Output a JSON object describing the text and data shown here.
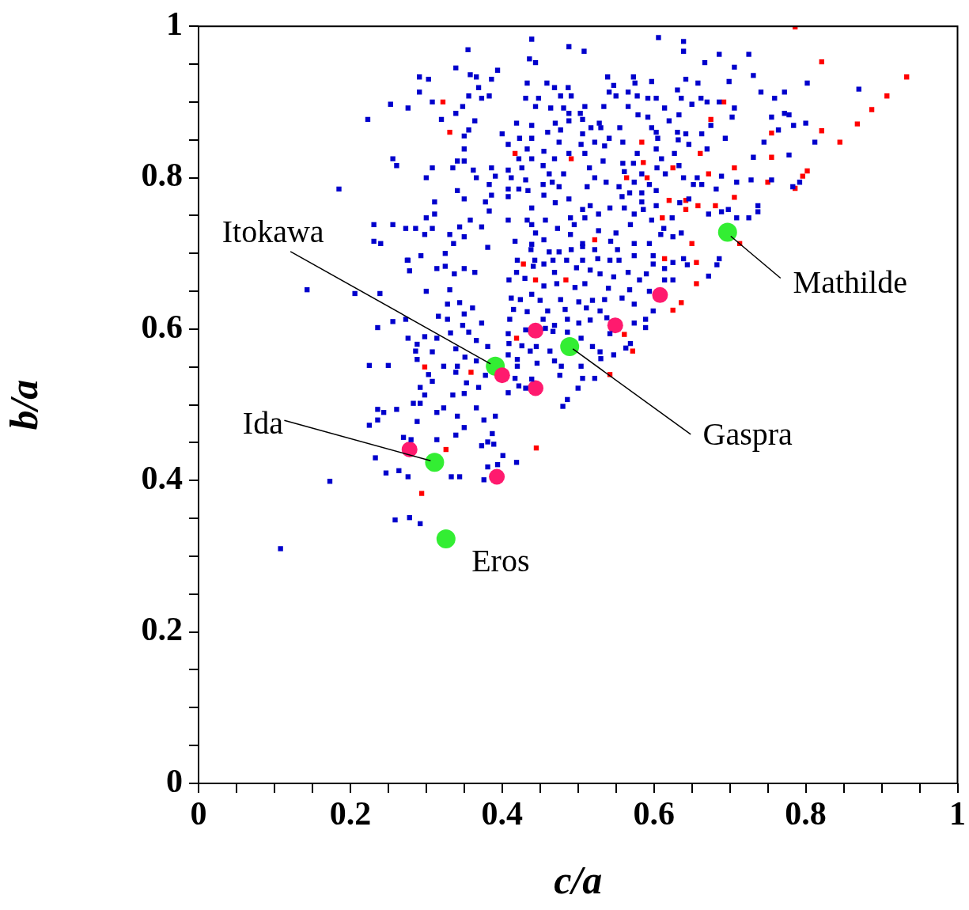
{
  "chart_data": {
    "type": "scatter",
    "xlabel": "c/a",
    "ylabel": "b/a",
    "xlim": [
      0,
      1
    ],
    "ylim": [
      0,
      1
    ],
    "xticks": [
      0,
      {
        "value": 0.05,
        "label": null
      },
      {
        "value": 0.1,
        "label": null
      },
      {
        "value": 0.15,
        "label": null
      },
      0.2,
      {
        "value": 0.25,
        "label": null
      },
      {
        "value": 0.3,
        "label": null
      },
      {
        "value": 0.35,
        "label": null
      },
      0.4,
      {
        "value": 0.45,
        "label": null
      },
      {
        "value": 0.5,
        "label": null
      },
      {
        "value": 0.55,
        "label": null
      },
      0.6,
      {
        "value": 0.65,
        "label": null
      },
      {
        "value": 0.7,
        "label": null
      },
      {
        "value": 0.75,
        "label": null
      },
      0.8,
      {
        "value": 0.85,
        "label": null
      },
      {
        "value": 0.9,
        "label": null
      },
      {
        "value": 0.95,
        "label": null
      },
      1
    ],
    "yticks": [
      0,
      {
        "value": 0.05,
        "label": null
      },
      {
        "value": 0.1,
        "label": null
      },
      {
        "value": 0.15,
        "label": null
      },
      0.2,
      {
        "value": 0.25,
        "label": null
      },
      {
        "value": 0.3,
        "label": null
      },
      {
        "value": 0.35,
        "label": null
      },
      0.4,
      {
        "value": 0.45,
        "label": null
      },
      {
        "value": 0.5,
        "label": null
      },
      {
        "value": 0.55,
        "label": null
      },
      0.6,
      {
        "value": 0.65,
        "label": null
      },
      {
        "value": 0.7,
        "label": null
      },
      {
        "value": 0.75,
        "label": null
      },
      0.8,
      {
        "value": 0.85,
        "label": null
      },
      {
        "value": 0.9,
        "label": null
      },
      {
        "value": 0.95,
        "label": null
      },
      1
    ],
    "grid": false,
    "legend": false,
    "series": [
      {
        "color": "#0000cc",
        "marker": "square",
        "x": [
          0.355,
          0.339,
          0.291,
          0.303,
          0.291,
          0.358,
          0.366,
          0.369,
          0.356,
          0.373,
          0.383,
          0.386,
          0.394,
          0.253,
          0.276,
          0.308,
          0.339,
          0.348,
          0.32,
          0.364,
          0.223,
          0.356,
          0.35,
          0.4,
          0.35,
          0.256,
          0.261,
          0.308,
          0.341,
          0.35,
          0.335,
          0.362,
          0.386,
          0.3,
          0.366,
          0.391,
          0.383,
          0.185,
          0.341,
          0.311,
          0.35,
          0.386,
          0.378,
          0.311,
          0.3,
          0.358,
          0.383,
          0.231,
          0.256,
          0.273,
          0.286,
          0.308,
          0.344,
          0.373,
          0.298,
          0.331,
          0.35,
          0.231,
          0.24,
          0.336,
          0.381,
          0.293,
          0.325,
          0.275,
          0.439,
          0.488,
          0.508,
          0.606,
          0.639,
          0.639,
          0.686,
          0.436,
          0.444,
          0.667,
          0.706,
          0.539,
          0.573,
          0.597,
          0.642,
          0.699,
          0.658,
          0.433,
          0.459,
          0.469,
          0.487,
          0.547,
          0.575,
          0.631,
          0.541,
          0.566,
          0.431,
          0.448,
          0.477,
          0.491,
          0.55,
          0.578,
          0.592,
          0.603,
          0.636,
          0.662,
          0.67,
          0.686,
          0.65,
          0.444,
          0.464,
          0.481,
          0.509,
          0.534,
          0.566,
          0.614,
          0.706,
          0.488,
          0.503,
          0.579,
          0.592,
          0.633,
          0.703,
          0.419,
          0.439,
          0.47,
          0.488,
          0.506,
          0.528,
          0.555,
          0.597,
          0.62,
          0.675,
          0.46,
          0.477,
          0.506,
          0.517,
          0.53,
          0.603,
          0.631,
          0.642,
          0.663,
          0.694,
          0.408,
          0.423,
          0.439,
          0.475,
          0.504,
          0.522,
          0.541,
          0.559,
          0.605,
          0.632,
          0.646,
          0.67,
          0.433,
          0.455,
          0.488,
          0.509,
          0.535,
          0.578,
          0.603,
          0.627,
          0.422,
          0.439,
          0.469,
          0.533,
          0.559,
          0.573,
          0.61,
          0.633,
          0.454,
          0.426,
          0.515,
          0.604,
          0.408,
          0.462,
          0.481,
          0.561,
          0.584,
          0.615,
          0.412,
          0.431,
          0.466,
          0.522,
          0.537,
          0.574,
          0.639,
          0.657,
          0.689,
          0.454,
          0.475,
          0.512,
          0.554,
          0.594,
          0.652,
          0.663,
          0.709,
          0.408,
          0.422,
          0.434,
          0.682,
          0.455,
          0.558,
          0.568,
          0.584,
          0.603,
          0.408,
          0.488,
          0.47,
          0.516,
          0.542,
          0.561,
          0.584,
          0.634,
          0.646,
          0.439,
          0.506,
          0.603,
          0.672,
          0.689,
          0.698,
          0.408,
          0.433,
          0.457,
          0.49,
          0.509,
          0.527,
          0.574,
          0.586,
          0.624,
          0.709,
          0.439,
          0.473,
          0.495,
          0.527,
          0.55,
          0.569,
          0.597,
          0.613,
          0.636,
          0.417,
          0.444,
          0.455,
          0.49,
          0.506,
          0.543,
          0.574,
          0.594,
          0.609,
          0.625,
          0.438,
          0.462,
          0.475,
          0.491,
          0.522,
          0.552,
          0.574,
          0.599,
          0.639,
          0.686,
          0.725,
          0.731,
          0.741,
          0.802,
          0.87,
          0.759,
          0.772,
          0.755,
          0.772,
          0.778,
          0.784,
          0.8,
          0.764,
          0.745,
          0.812,
          0.731,
          0.778,
          0.728,
          0.755,
          0.783,
          0.792,
          0.737,
          0.737,
          0.725,
          0.439,
          0.506,
          0.683,
          0.672,
          0.644,
          0.625,
          0.614,
          0.614,
          0.625,
          0.599,
          0.554,
          0.542,
          0.526,
          0.506,
          0.485,
          0.467,
          0.443,
          0.42,
          0.441,
          0.455,
          0.419,
          0.469,
          0.498,
          0.516,
          0.529,
          0.547,
          0.566,
          0.581,
          0.59,
          0.409,
          0.43,
          0.455,
          0.472,
          0.496,
          0.509,
          0.54,
          0.568,
          0.594,
          0.412,
          0.424,
          0.439,
          0.45,
          0.477,
          0.501,
          0.519,
          0.535,
          0.558,
          0.574,
          0.599,
          0.415,
          0.433,
          0.46,
          0.483,
          0.511,
          0.529,
          0.41,
          0.454,
          0.469,
          0.486,
          0.501,
          0.516,
          0.538,
          0.574,
          0.589,
          0.589,
          0.408,
          0.431,
          0.457,
          0.467,
          0.486,
          0.504,
          0.542,
          0.569,
          0.409,
          0.426,
          0.437,
          0.445,
          0.463,
          0.519,
          0.529,
          0.563,
          0.547,
          0.408,
          0.42,
          0.469,
          0.504,
          0.53,
          0.42,
          0.446,
          0.478,
          0.476,
          0.417,
          0.506,
          0.522,
          0.422,
          0.431,
          0.5,
          0.48,
          0.486,
          0.408,
          0.439,
          0.143,
          0.206,
          0.239,
          0.276,
          0.278,
          0.314,
          0.325,
          0.337,
          0.35,
          0.364,
          0.3,
          0.331,
          0.256,
          0.273,
          0.236,
          0.316,
          0.328,
          0.328,
          0.344,
          0.361,
          0.35,
          0.373,
          0.348,
          0.276,
          0.298,
          0.314,
          0.332,
          0.356,
          0.366,
          0.288,
          0.286,
          0.308,
          0.339,
          0.381,
          0.288,
          0.351,
          0.366,
          0.225,
          0.25,
          0.323,
          0.341,
          0.303,
          0.339,
          0.378,
          0.308,
          0.353,
          0.369,
          0.292,
          0.298,
          0.335,
          0.35,
          0.283,
          0.292,
          0.366,
          0.236,
          0.244,
          0.261,
          0.314,
          0.323,
          0.341,
          0.376,
          0.391,
          0.225,
          0.236,
          0.288,
          0.35,
          0.387,
          0.27,
          0.28,
          0.314,
          0.339,
          0.373,
          0.381,
          0.389,
          0.233,
          0.247,
          0.264,
          0.276,
          0.333,
          0.344,
          0.376,
          0.381,
          0.394,
          0.401,
          0.419,
          0.173,
          0.259,
          0.278,
          0.292,
          0.108
        ],
        "values": [
          0.969,
          0.945,
          0.933,
          0.93,
          0.913,
          0.936,
          0.933,
          0.919,
          0.908,
          0.905,
          0.908,
          0.93,
          0.942,
          0.897,
          0.892,
          0.9,
          0.885,
          0.894,
          0.877,
          0.875,
          0.877,
          0.863,
          0.855,
          0.858,
          0.838,
          0.825,
          0.816,
          0.813,
          0.822,
          0.822,
          0.813,
          0.81,
          0.813,
          0.8,
          0.8,
          0.802,
          0.791,
          0.785,
          0.783,
          0.768,
          0.772,
          0.777,
          0.768,
          0.752,
          0.747,
          0.744,
          0.756,
          0.738,
          0.738,
          0.733,
          0.733,
          0.733,
          0.735,
          0.735,
          0.725,
          0.725,
          0.722,
          0.716,
          0.713,
          0.713,
          0.708,
          0.697,
          0.7,
          0.691,
          0.983,
          0.973,
          0.967,
          0.985,
          0.98,
          0.967,
          0.963,
          0.957,
          0.952,
          0.952,
          0.946,
          0.933,
          0.933,
          0.927,
          0.93,
          0.927,
          0.925,
          0.925,
          0.925,
          0.919,
          0.919,
          0.922,
          0.925,
          0.916,
          0.913,
          0.913,
          0.905,
          0.905,
          0.908,
          0.908,
          0.908,
          0.908,
          0.905,
          0.905,
          0.905,
          0.905,
          0.9,
          0.9,
          0.897,
          0.894,
          0.892,
          0.892,
          0.894,
          0.894,
          0.894,
          0.892,
          0.892,
          0.885,
          0.885,
          0.883,
          0.88,
          0.883,
          0.88,
          0.872,
          0.869,
          0.872,
          0.875,
          0.877,
          0.872,
          0.866,
          0.866,
          0.875,
          0.869,
          0.86,
          0.863,
          0.858,
          0.866,
          0.866,
          0.86,
          0.86,
          0.858,
          0.858,
          0.852,
          0.844,
          0.852,
          0.852,
          0.847,
          0.844,
          0.847,
          0.852,
          0.847,
          0.852,
          0.85,
          0.844,
          0.838,
          0.838,
          0.835,
          0.832,
          0.832,
          0.842,
          0.832,
          0.838,
          0.832,
          0.825,
          0.825,
          0.825,
          0.822,
          0.819,
          0.819,
          0.825,
          0.816,
          0.816,
          0.813,
          0.813,
          0.813,
          0.81,
          0.805,
          0.805,
          0.808,
          0.805,
          0.805,
          0.8,
          0.797,
          0.794,
          0.8,
          0.794,
          0.794,
          0.8,
          0.8,
          0.802,
          0.791,
          0.788,
          0.788,
          0.788,
          0.791,
          0.791,
          0.791,
          0.794,
          0.785,
          0.785,
          0.783,
          0.785,
          0.777,
          0.775,
          0.78,
          0.78,
          0.783,
          0.775,
          0.772,
          0.767,
          0.763,
          0.76,
          0.76,
          0.768,
          0.767,
          0.772,
          0.76,
          0.758,
          0.763,
          0.752,
          0.755,
          0.758,
          0.744,
          0.744,
          0.744,
          0.747,
          0.747,
          0.752,
          0.752,
          0.758,
          0.747,
          0.747,
          0.738,
          0.733,
          0.738,
          0.73,
          0.727,
          0.738,
          0.744,
          0.733,
          0.727,
          0.716,
          0.727,
          0.718,
          0.725,
          0.713,
          0.716,
          0.713,
          0.713,
          0.725,
          0.722,
          0.705,
          0.702,
          0.702,
          0.705,
          0.705,
          0.705,
          0.697,
          0.697,
          0.693,
          0.693,
          0.963,
          0.935,
          0.913,
          0.925,
          0.917,
          0.905,
          0.913,
          0.88,
          0.885,
          0.883,
          0.869,
          0.872,
          0.863,
          0.847,
          0.847,
          0.827,
          0.83,
          0.797,
          0.797,
          0.788,
          0.794,
          0.763,
          0.755,
          0.747,
          0.712,
          0.709,
          0.685,
          0.67,
          0.685,
          0.688,
          0.68,
          0.665,
          0.665,
          0.686,
          0.691,
          0.691,
          0.693,
          0.691,
          0.691,
          0.691,
          0.691,
          0.691,
          0.683,
          0.686,
          0.675,
          0.675,
          0.681,
          0.678,
          0.673,
          0.669,
          0.675,
          0.665,
          0.673,
          0.665,
          0.667,
          0.657,
          0.66,
          0.655,
          0.66,
          0.654,
          0.652,
          0.65,
          0.641,
          0.639,
          0.646,
          0.638,
          0.639,
          0.636,
          0.638,
          0.639,
          0.641,
          0.633,
          0.624,
          0.626,
          0.623,
          0.624,
          0.626,
          0.628,
          0.624,
          0.613,
          0.613,
          0.605,
          0.613,
          0.608,
          0.612,
          0.615,
          0.608,
          0.613,
          0.602,
          0.594,
          0.599,
          0.601,
          0.597,
          0.596,
          0.588,
          0.594,
          0.581,
          0.581,
          0.578,
          0.571,
          0.577,
          0.571,
          0.577,
          0.57,
          0.575,
          0.566,
          0.566,
          0.56,
          0.558,
          0.551,
          0.561,
          0.551,
          0.555,
          0.551,
          0.539,
          0.535,
          0.535,
          0.535,
          0.525,
          0.522,
          0.522,
          0.498,
          0.507,
          0.516,
          0.534,
          0.652,
          0.647,
          0.647,
          0.691,
          0.677,
          0.68,
          0.683,
          0.673,
          0.68,
          0.675,
          0.65,
          0.652,
          0.61,
          0.613,
          0.602,
          0.617,
          0.613,
          0.633,
          0.635,
          0.628,
          0.62,
          0.608,
          0.605,
          0.588,
          0.59,
          0.588,
          0.595,
          0.596,
          0.585,
          0.58,
          0.571,
          0.57,
          0.574,
          0.577,
          0.56,
          0.563,
          0.558,
          0.552,
          0.552,
          0.551,
          0.551,
          0.54,
          0.543,
          0.539,
          0.531,
          0.529,
          0.523,
          0.523,
          0.513,
          0.513,
          0.515,
          0.502,
          0.502,
          0.496,
          0.494,
          0.49,
          0.494,
          0.49,
          0.496,
          0.485,
          0.48,
          0.485,
          0.473,
          0.48,
          0.478,
          0.47,
          0.462,
          0.457,
          0.454,
          0.454,
          0.46,
          0.446,
          0.451,
          0.448,
          0.43,
          0.41,
          0.413,
          0.405,
          0.405,
          0.405,
          0.401,
          0.418,
          0.421,
          0.433,
          0.424,
          0.399,
          0.348,
          0.351,
          0.343,
          0.31
        ]
      },
      {
        "color": "#ff0000",
        "marker": "square",
        "x": [
          0.786,
          0.322,
          0.331,
          0.821,
          0.933,
          0.907,
          0.887,
          0.868,
          0.845,
          0.821,
          0.802,
          0.796,
          0.786,
          0.755,
          0.755,
          0.75,
          0.692,
          0.675,
          0.584,
          0.661,
          0.417,
          0.491,
          0.586,
          0.625,
          0.706,
          0.672,
          0.564,
          0.591,
          0.706,
          0.62,
          0.642,
          0.642,
          0.658,
          0.681,
          0.611,
          0.522,
          0.65,
          0.713,
          0.614,
          0.656,
          0.428,
          0.444,
          0.484,
          0.656,
          0.636,
          0.625,
          0.419,
          0.561,
          0.572,
          0.542,
          0.298,
          0.359,
          0.326,
          0.294,
          0.445
        ],
        "values": [
          0.999,
          0.9,
          0.86,
          0.953,
          0.933,
          0.908,
          0.89,
          0.871,
          0.847,
          0.862,
          0.809,
          0.802,
          0.786,
          0.859,
          0.827,
          0.794,
          0.9,
          0.877,
          0.847,
          0.832,
          0.832,
          0.825,
          0.82,
          0.813,
          0.813,
          0.805,
          0.8,
          0.8,
          0.774,
          0.77,
          0.77,
          0.758,
          0.763,
          0.763,
          0.747,
          0.718,
          0.713,
          0.713,
          0.693,
          0.688,
          0.686,
          0.665,
          0.665,
          0.66,
          0.635,
          0.625,
          0.588,
          0.593,
          0.571,
          0.54,
          0.55,
          0.543,
          0.441,
          0.383,
          0.443
        ]
      },
      {
        "color": "#ff1a6e",
        "marker": "circle",
        "x": [
          0.278,
          0.4,
          0.444,
          0.444,
          0.393,
          0.549,
          0.608
        ],
        "values": [
          0.441,
          0.539,
          0.598,
          0.522,
          0.405,
          0.605,
          0.645
        ]
      },
      {
        "color": "#33ee33",
        "marker": "circle",
        "x": [
          0.391,
          0.489,
          0.311,
          0.326,
          0.697
        ],
        "values": [
          0.551,
          0.577,
          0.424,
          0.323,
          0.728
        ]
      }
    ],
    "annotations": [
      {
        "text": "Itokawa",
        "x": 0.391,
        "y": 0.551
      },
      {
        "text": "Gaspra",
        "x": 0.489,
        "y": 0.577
      },
      {
        "text": "Ida",
        "x": 0.311,
        "y": 0.424
      },
      {
        "text": "Eros",
        "x": 0.326,
        "y": 0.323
      },
      {
        "text": "Mathilde",
        "x": 0.697,
        "y": 0.728
      }
    ]
  }
}
